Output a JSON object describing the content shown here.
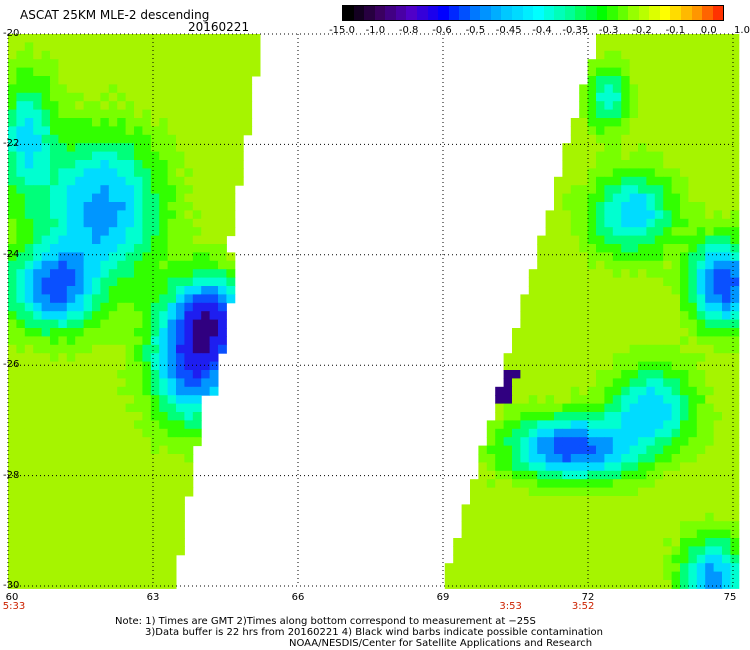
{
  "header": {
    "title": "ASCAT 25KM MLE-2 descending",
    "date": "20160221"
  },
  "colorbar": {
    "labels": [
      "-15.0",
      "-1.0",
      "-0.8",
      "-0.6",
      "-0.5",
      "-0.45",
      "-0.4",
      "-0.35",
      "-0.3",
      "-0.2",
      "-0.1",
      "0.0",
      "1.0"
    ],
    "colors": [
      "#000000",
      "#3a0060",
      "#5000c8",
      "#0000ff",
      "#0078ff",
      "#00c8ff",
      "#00ffff",
      "#00ff96",
      "#00ff00",
      "#96ff00",
      "#ffff00",
      "#ff9600",
      "#ff0000"
    ]
  },
  "axes": {
    "lat_labels": [
      "-20",
      "-22",
      "-24",
      "-26",
      "-28",
      "-30"
    ],
    "lon_labels": [
      "60",
      "63",
      "66",
      "69",
      "72",
      "75"
    ],
    "lat_range": [
      -30,
      -20
    ],
    "lon_range": [
      60,
      75
    ],
    "grid": true
  },
  "times": [
    {
      "label": "5:33",
      "lon": 60
    },
    {
      "label": "3:53",
      "lon": 70.4
    },
    {
      "label": "3:52",
      "lon": 71.9
    }
  ],
  "notes": [
    "Note: 1) Times are GMT 2)Times along bottom correspond to measurement at −25S",
    "3)Data buffer is 22 hrs from 20160221 4) Black wind barbs indicate possible contamination",
    "NOAA/NESDIS/Center for Satellite Applications and Research"
  ]
}
